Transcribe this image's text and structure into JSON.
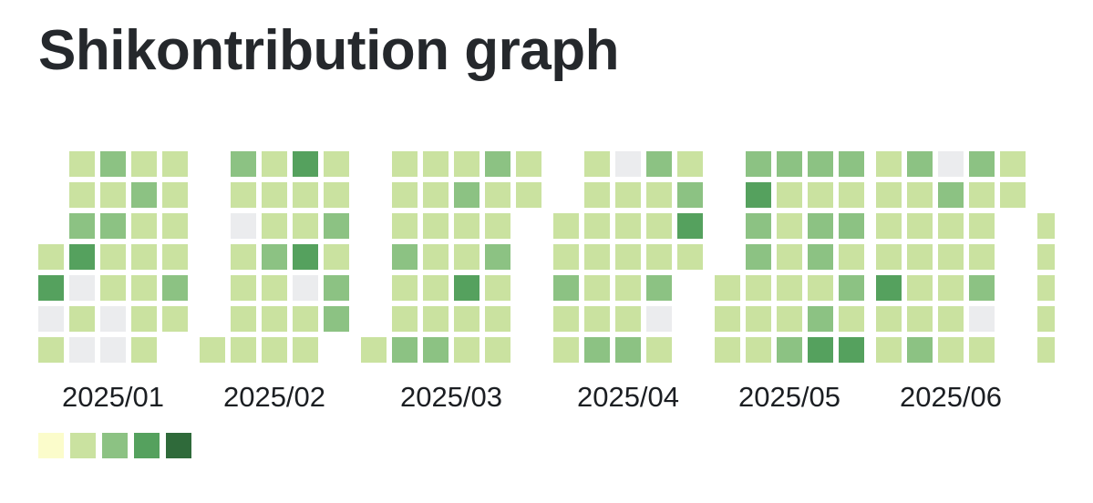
{
  "title": "Shikontribution graph",
  "chart_data": {
    "type": "heatmap",
    "title": "Shikontribution graph",
    "orientation": "rows are days of week (top to bottom), columns are weeks; one block per month",
    "level_colors": {
      "0": "#ebecee",
      "1": "#fbfccb",
      "2": "#cae2a0",
      "3": "#8cc283",
      "4": "#55a15e",
      "5": "#2f6a3a"
    },
    "legend_levels": [
      "#fbfccb",
      "#cae2a0",
      "#8cc283",
      "#55a15e",
      "#2f6a3a"
    ],
    "months": [
      {
        "label": "2025/01",
        "clipped": false,
        "weeks": [
          [
            null,
            null,
            null,
            2,
            4,
            0,
            2
          ],
          [
            2,
            2,
            3,
            4,
            0,
            2,
            0
          ],
          [
            3,
            2,
            3,
            2,
            2,
            0,
            0
          ],
          [
            2,
            3,
            2,
            2,
            2,
            2,
            2
          ],
          [
            2,
            2,
            2,
            2,
            3,
            2,
            null
          ]
        ]
      },
      {
        "label": "2025/02",
        "clipped": false,
        "weeks": [
          [
            null,
            null,
            null,
            null,
            null,
            null,
            2
          ],
          [
            3,
            2,
            0,
            2,
            2,
            2,
            2
          ],
          [
            2,
            2,
            2,
            3,
            2,
            2,
            2
          ],
          [
            4,
            2,
            2,
            4,
            0,
            2,
            2
          ],
          [
            2,
            2,
            3,
            2,
            3,
            3,
            null
          ]
        ]
      },
      {
        "label": "2025/03",
        "clipped": false,
        "weeks": [
          [
            null,
            null,
            null,
            null,
            null,
            null,
            2
          ],
          [
            2,
            2,
            2,
            3,
            2,
            2,
            3
          ],
          [
            2,
            2,
            2,
            2,
            2,
            2,
            3
          ],
          [
            2,
            3,
            2,
            2,
            4,
            2,
            2
          ],
          [
            3,
            2,
            2,
            3,
            2,
            2,
            2
          ],
          [
            2,
            2,
            null,
            null,
            null,
            null,
            null
          ]
        ]
      },
      {
        "label": "2025/04",
        "clipped": false,
        "weeks": [
          [
            null,
            null,
            2,
            2,
            3,
            2,
            2
          ],
          [
            2,
            2,
            2,
            2,
            2,
            2,
            3
          ],
          [
            0,
            2,
            2,
            2,
            2,
            2,
            3
          ],
          [
            3,
            2,
            2,
            2,
            3,
            0,
            2
          ],
          [
            2,
            3,
            4,
            2,
            null,
            null,
            null
          ]
        ]
      },
      {
        "label": "2025/05",
        "clipped": false,
        "weeks": [
          [
            null,
            null,
            null,
            null,
            2,
            2,
            2
          ],
          [
            3,
            4,
            3,
            3,
            2,
            2,
            2
          ],
          [
            3,
            2,
            2,
            2,
            2,
            2,
            3
          ],
          [
            3,
            2,
            3,
            3,
            2,
            3,
            4
          ],
          [
            3,
            2,
            3,
            2,
            3,
            2,
            4
          ]
        ]
      },
      {
        "label": "2025/06",
        "clipped": false,
        "weeks": [
          [
            2,
            2,
            2,
            2,
            4,
            2,
            2
          ],
          [
            3,
            2,
            2,
            2,
            2,
            2,
            3
          ],
          [
            0,
            3,
            2,
            2,
            2,
            2,
            2
          ],
          [
            3,
            2,
            2,
            2,
            3,
            0,
            2
          ],
          [
            2,
            2,
            null,
            null,
            null,
            null,
            null
          ]
        ]
      },
      {
        "label": "",
        "clipped": true,
        "weeks": [
          [
            null,
            null,
            2,
            2,
            2,
            2,
            2
          ]
        ]
      }
    ]
  }
}
